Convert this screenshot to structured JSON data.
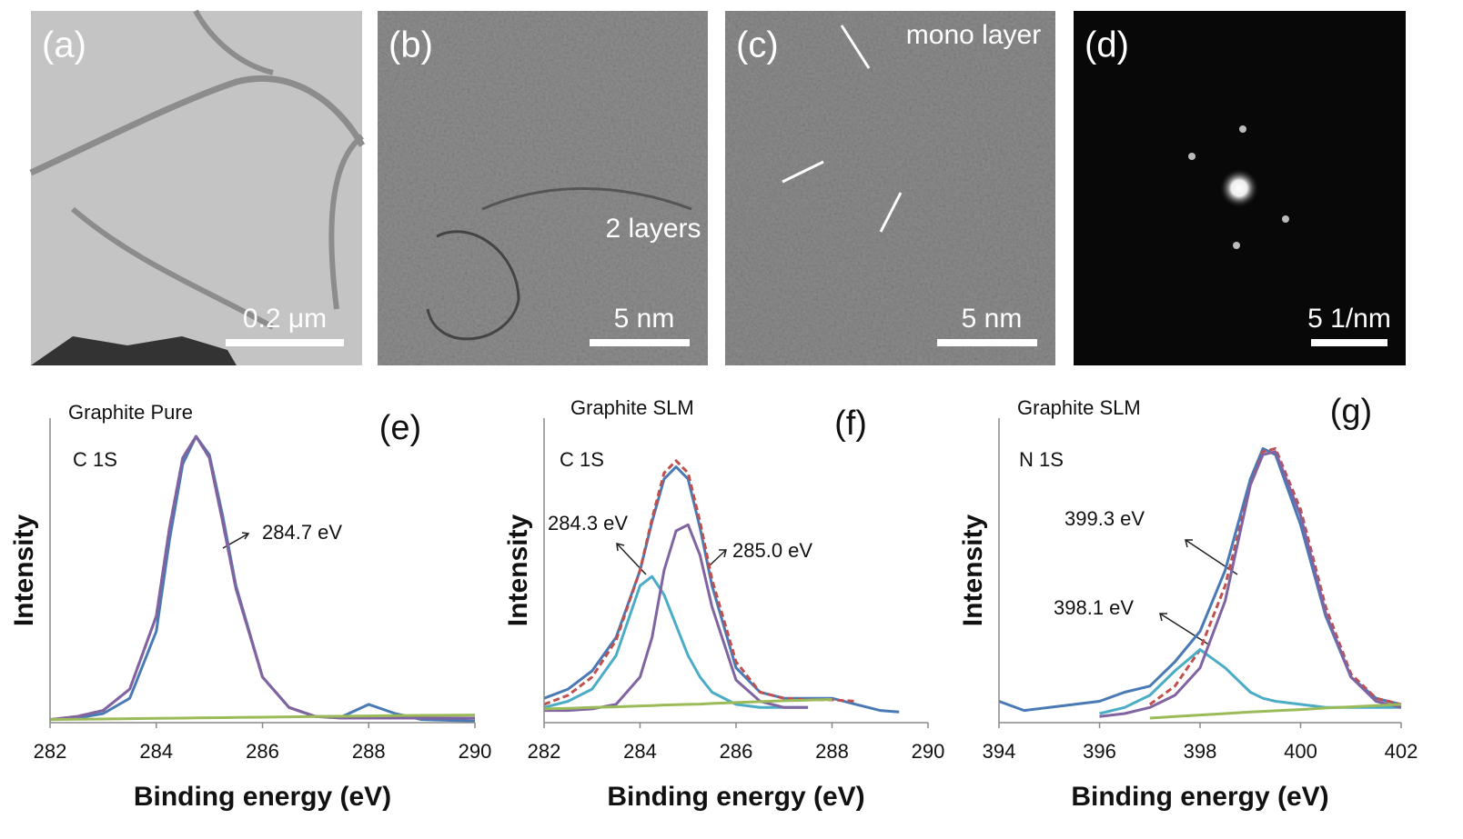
{
  "panels": [
    {
      "label": "(a)",
      "scale_bar": "0.2 μm"
    },
    {
      "label": "(b)",
      "scale_bar": "5 nm",
      "annotation": "2 layers"
    },
    {
      "label": "(c)",
      "scale_bar": "5 nm",
      "annotation": "mono layer"
    },
    {
      "label": "(d)",
      "scale_bar": "5 1/nm"
    }
  ],
  "chart_data": [
    {
      "type": "line",
      "title": "Graphite Pure",
      "panel_label": "(e)",
      "annotations": [
        "C 1S",
        "284.7 eV"
      ],
      "x_label": "Binding energy (eV)",
      "y_label": "Intensity",
      "x": [
        282,
        282.5,
        283,
        283.5,
        284,
        284.25,
        284.5,
        284.75,
        285,
        285.25,
        285.5,
        286,
        286.5,
        287,
        287.5,
        288,
        288.5,
        289,
        290
      ],
      "xlim": [
        282,
        290
      ],
      "xticks": [
        282,
        284,
        286,
        288,
        290
      ],
      "ylim": [
        0,
        100
      ],
      "series": [
        {
          "color": "#4a7ab5",
          "values": [
            1,
            1.5,
            3,
            8,
            30,
            60,
            85,
            94,
            88,
            68,
            45,
            15,
            5,
            2,
            2,
            6,
            3,
            1,
            0.5
          ]
        },
        {
          "color": "#c0504d",
          "style": "dashed",
          "values": [
            1,
            2,
            4,
            11,
            35,
            64,
            87,
            94,
            87,
            66,
            44,
            15,
            5,
            2,
            1.5,
            1.5,
            1.5,
            1.5,
            1.5
          ]
        },
        {
          "color": "#8064a2",
          "values": [
            1,
            2,
            4,
            11,
            35,
            64,
            87,
            94,
            87,
            66,
            44,
            15,
            5,
            2,
            1.5,
            1.5,
            1.5,
            1.5,
            1.5
          ]
        },
        {
          "color": "#9bbb59",
          "values": [
            1,
            1.1,
            1.2,
            1.3,
            1.4,
            1.45,
            1.5,
            1.55,
            1.6,
            1.65,
            1.7,
            1.8,
            1.9,
            2,
            2.1,
            2.2,
            2.3,
            2.4,
            2.5
          ]
        }
      ]
    },
    {
      "type": "line",
      "title": "Graphite SLM",
      "panel_label": "(f)",
      "annotations": [
        "C 1S",
        "284.3 eV",
        "285.0 eV"
      ],
      "x_label": "Binding energy (eV)",
      "y_label": "Intensity",
      "x": [
        282,
        282.5,
        283,
        283.5,
        284,
        284.25,
        284.5,
        284.75,
        285,
        285.25,
        285.5,
        286,
        286.5,
        287,
        287.5,
        288,
        288.5,
        289,
        289.4
      ],
      "xlim": [
        282,
        290
      ],
      "xticks": [
        282,
        284,
        286,
        288,
        290
      ],
      "ylim": [
        0,
        100
      ],
      "series": [
        {
          "color": "#4a7ab5",
          "values": [
            8,
            11,
            17,
            28,
            50,
            66,
            80,
            84,
            80,
            64,
            45,
            18,
            10,
            8,
            8,
            8,
            6,
            4,
            3.5
          ]
        },
        {
          "color": "#c0504d",
          "style": "dashed",
          "values": [
            6,
            9,
            15,
            27,
            50,
            67,
            82,
            86,
            82,
            66,
            47,
            20,
            10,
            8,
            7.5,
            7.5,
            7,
            null,
            null
          ]
        },
        {
          "color": "#4bacc6",
          "values": [
            5,
            7,
            11,
            22,
            45,
            48,
            42,
            32,
            22,
            15,
            10,
            6,
            5,
            5,
            5,
            null,
            null,
            null,
            null
          ]
        },
        {
          "color": "#8064a2",
          "values": [
            4,
            4,
            4.5,
            6,
            15,
            28,
            50,
            63,
            65,
            55,
            38,
            14,
            7,
            5,
            5,
            null,
            null,
            null,
            null
          ]
        },
        {
          "color": "#9bbb59",
          "values": [
            4.5,
            4.7,
            5,
            5.2,
            5.5,
            5.6,
            5.8,
            5.9,
            6,
            6.1,
            6.3,
            6.6,
            6.9,
            7.2,
            7.4,
            7.6,
            null,
            null,
            null
          ]
        }
      ]
    },
    {
      "type": "line",
      "title": "Graphite SLM",
      "panel_label": "(g)",
      "annotations": [
        "N 1S",
        "399.3 eV",
        "398.1 eV"
      ],
      "x_label": "Binding energy (eV)",
      "y_label": "Intensity",
      "x": [
        394,
        394.5,
        395,
        395.5,
        396,
        396.5,
        397,
        397.5,
        398,
        398.5,
        399,
        399.25,
        399.5,
        400,
        400.5,
        401,
        401.5,
        402
      ],
      "xlim": [
        394,
        402
      ],
      "xticks": [
        394,
        396,
        398,
        400,
        402
      ],
      "ylim": [
        0,
        100
      ],
      "series": [
        {
          "color": "#4a7ab5",
          "values": [
            7,
            4,
            5,
            6,
            7,
            10,
            12,
            20,
            30,
            50,
            80,
            90,
            88,
            65,
            35,
            15,
            8,
            6
          ]
        },
        {
          "color": "#c0504d",
          "style": "dashed",
          "values": [
            null,
            null,
            null,
            null,
            null,
            null,
            6,
            12,
            24,
            45,
            78,
            89,
            90,
            70,
            38,
            16,
            8,
            6
          ]
        },
        {
          "color": "#4bacc6",
          "values": [
            null,
            null,
            null,
            null,
            3,
            5,
            9,
            17,
            24,
            18,
            10,
            8,
            7,
            6,
            5,
            5,
            5,
            5
          ]
        },
        {
          "color": "#8064a2",
          "values": [
            null,
            null,
            null,
            null,
            2,
            3,
            5,
            9,
            18,
            40,
            78,
            88,
            89,
            68,
            36,
            15,
            7,
            5
          ]
        },
        {
          "color": "#9bbb59",
          "values": [
            null,
            null,
            null,
            null,
            null,
            null,
            1.5,
            2,
            2.5,
            3,
            3.5,
            3.7,
            3.9,
            4.3,
            4.8,
            5.2,
            5.6,
            6
          ]
        }
      ]
    }
  ]
}
